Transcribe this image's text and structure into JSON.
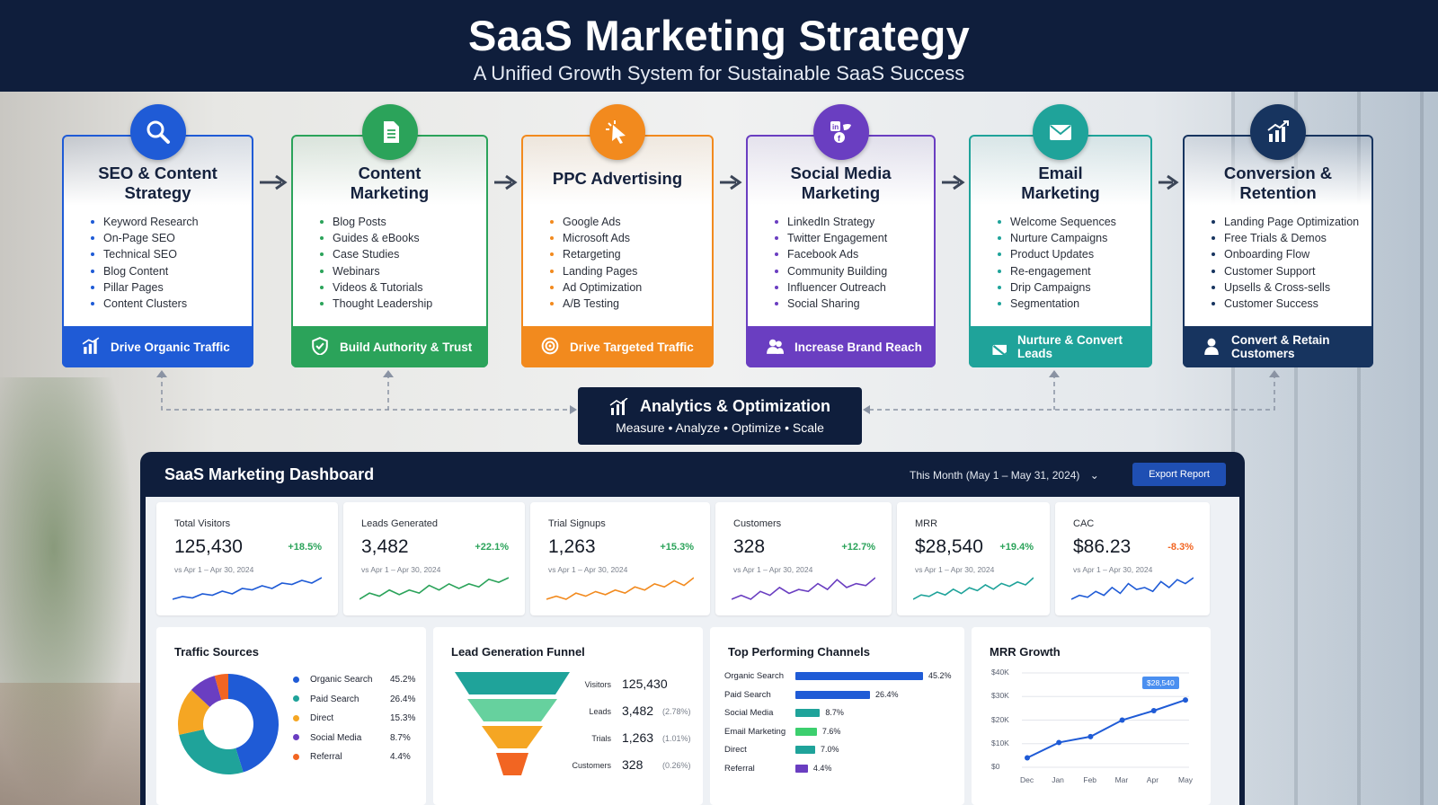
{
  "header": {
    "title": "SaaS Marketing Strategy",
    "subtitle": "A Unified Growth System for Sustainable SaaS Success"
  },
  "stages": [
    {
      "title": "SEO & Content Strategy",
      "title_lines": [
        "SEO & Content",
        "Strategy"
      ],
      "color": "#1f5bd6",
      "icon": "magnifier-icon",
      "items": [
        "Keyword Research",
        "On-Page SEO",
        "Technical SEO",
        "Blog Content",
        "Pillar Pages",
        "Content Clusters"
      ],
      "footer": "Drive Organic Traffic",
      "footer_icon": "bar-chart-icon"
    },
    {
      "title": "Content Marketing",
      "title_lines": [
        "Content",
        "Marketing"
      ],
      "color": "#2ba35a",
      "icon": "document-icon",
      "items": [
        "Blog Posts",
        "Guides & eBooks",
        "Case Studies",
        "Webinars",
        "Videos & Tutorials",
        "Thought Leadership"
      ],
      "footer": "Build Authority & Trust",
      "footer_icon": "shield-check-icon"
    },
    {
      "title": "PPC Advertising",
      "title_lines": [
        "PPC Advertising"
      ],
      "color": "#f28a1e",
      "icon": "cursor-click-icon",
      "items": [
        "Google Ads",
        "Microsoft Ads",
        "Retargeting",
        "Landing Pages",
        "Ad Optimization",
        "A/B Testing"
      ],
      "footer": "Drive Targeted Traffic",
      "footer_icon": "target-icon"
    },
    {
      "title": "Social Media Marketing",
      "title_lines": [
        "Social Media",
        "Marketing"
      ],
      "color": "#6a3ec1",
      "icon": "social-networks-icon",
      "items": [
        "LinkedIn Strategy",
        "Twitter Engagement",
        "Facebook Ads",
        "Community Building",
        "Influencer Outreach",
        "Social Sharing"
      ],
      "footer": "Increase Brand Reach",
      "footer_icon": "users-icon"
    },
    {
      "title": "Email Marketing",
      "title_lines": [
        "Email",
        "Marketing"
      ],
      "color": "#1fa39a",
      "icon": "envelope-icon",
      "items": [
        "Welcome Sequences",
        "Nurture Campaigns",
        "Product Updates",
        "Re-engagement",
        "Drip Campaigns",
        "Segmentation"
      ],
      "footer": "Nurture & Convert Leads",
      "footer_icon": "envelope-icon"
    },
    {
      "title": "Conversion & Retention",
      "title_lines": [
        "Conversion &",
        "Retention"
      ],
      "color": "#17345f",
      "icon": "growth-chart-icon",
      "items": [
        "Landing Page Optimization",
        "Free Trials & Demos",
        "Onboarding Flow",
        "Customer Support",
        "Upsells & Cross-sells",
        "Customer Success"
      ],
      "footer": "Convert & Retain Customers",
      "footer_icon": "user-icon"
    }
  ],
  "analytics": {
    "title": "Analytics & Optimization",
    "subtitle": "Measure  •  Analyze  •  Optimize  •  Scale"
  },
  "dashboard": {
    "title": "SaaS Marketing Dashboard",
    "date_range": "This Month (May 1 – May 31, 2024)",
    "export_label": "Export Report",
    "kpis": [
      {
        "label": "Total Visitors",
        "value": "125,430",
        "change": "+18.5%",
        "compare": "vs Apr 1 – Apr 30, 2024",
        "color": "#1f5bd6",
        "trend": [
          3,
          4,
          3.5,
          5,
          4.5,
          6,
          5,
          7,
          6.5,
          8,
          7,
          9,
          8.5,
          10,
          9,
          11
        ]
      },
      {
        "label": "Leads Generated",
        "value": "3,482",
        "change": "+22.1%",
        "compare": "vs Apr 1 – Apr 30, 2024",
        "color": "#2ba35a",
        "trend": [
          3,
          5,
          4,
          6,
          4.5,
          6,
          5,
          7.5,
          6,
          8,
          6.5,
          8,
          7,
          9.5,
          8.5,
          10
        ]
      },
      {
        "label": "Trial Signups",
        "value": "1,263",
        "change": "+15.3%",
        "compare": "vs Apr 1 – Apr 30, 2024",
        "color": "#f28a1e",
        "trend": [
          3,
          4,
          3,
          5,
          4,
          5.5,
          4.5,
          6,
          5,
          7,
          6,
          8,
          7,
          9,
          7.5,
          10
        ]
      },
      {
        "label": "Customers",
        "value": "328",
        "change": "+12.7%",
        "compare": "vs Apr 1 – Apr 30, 2024",
        "color": "#6a3ec1",
        "trend": [
          4,
          5,
          4,
          6,
          5,
          7,
          5.5,
          6.5,
          6,
          8,
          6.5,
          9,
          7,
          8,
          7.5,
          9.5
        ]
      },
      {
        "label": "MRR",
        "value": "$28,540",
        "change": "+19.4%",
        "compare": "vs Apr 1 – Apr 30, 2024",
        "color": "#1fa39a",
        "trend": [
          3,
          4.5,
          4,
          5.5,
          4.5,
          6.5,
          5,
          7,
          6,
          8,
          6.5,
          8.5,
          7.5,
          9,
          8,
          10.5
        ]
      },
      {
        "label": "CAC",
        "value": "$86.23",
        "change": "-8.3%",
        "compare": "vs Apr 1 – Apr 30, 2024",
        "color": "#1f5bd6",
        "trend": [
          4,
          5,
          4.5,
          6,
          5,
          7,
          5.5,
          8,
          6.5,
          7,
          6,
          8.5,
          7,
          9,
          8,
          9.5
        ]
      }
    ],
    "traffic_sources": {
      "title": "Traffic Sources",
      "items": [
        {
          "name": "Organic Search",
          "percent": "45.2%",
          "value": 45.2,
          "color": "#1f5bd6"
        },
        {
          "name": "Paid Search",
          "percent": "26.4%",
          "value": 26.4,
          "color": "#1fa39a"
        },
        {
          "name": "Direct",
          "percent": "15.3%",
          "value": 15.3,
          "color": "#f5a623"
        },
        {
          "name": "Social Media",
          "percent": "8.7%",
          "value": 8.7,
          "color": "#6a3ec1"
        },
        {
          "name": "Referral",
          "percent": "4.4%",
          "value": 4.4,
          "color": "#f26522"
        }
      ]
    },
    "funnel": {
      "title": "Lead Generation Funnel",
      "stages": [
        {
          "name": "Visitors",
          "value": "125,430",
          "rate": "",
          "color": "#1fa39a"
        },
        {
          "name": "Leads",
          "value": "3,482",
          "rate": "(2.78%)",
          "color": "#66d19e"
        },
        {
          "name": "Trials",
          "value": "1,263",
          "rate": "(1.01%)",
          "color": "#f5a623"
        },
        {
          "name": "Customers",
          "value": "328",
          "rate": "(0.26%)",
          "color": "#f26522"
        }
      ]
    },
    "channels": {
      "title": "Top Performing Channels",
      "items": [
        {
          "name": "Organic Search",
          "percent": "45.2%",
          "value": 45.2,
          "color": "#1f5bd6"
        },
        {
          "name": "Paid Search",
          "percent": "26.4%",
          "value": 26.4,
          "color": "#1f5bd6"
        },
        {
          "name": "Social Media",
          "percent": "8.7%",
          "value": 8.7,
          "color": "#1fa39a"
        },
        {
          "name": "Email Marketing",
          "percent": "7.6%",
          "value": 7.6,
          "color": "#3ccf6e"
        },
        {
          "name": "Direct",
          "percent": "7.0%",
          "value": 7.0,
          "color": "#1fa39a"
        },
        {
          "name": "Referral",
          "percent": "4.4%",
          "value": 4.4,
          "color": "#6a3ec1"
        }
      ]
    },
    "mrr": {
      "title": "MRR Growth",
      "callout": "$28,540",
      "y_ticks": [
        "$40K",
        "$30K",
        "$20K",
        "$10K",
        "$0"
      ],
      "x_ticks": [
        "Dec",
        "Jan",
        "Feb",
        "Mar",
        "Apr",
        "May"
      ]
    }
  },
  "chart_data": {
    "type": "line",
    "title": "MRR Growth",
    "x": [
      "Dec",
      "Jan",
      "Feb",
      "Mar",
      "Apr",
      "May"
    ],
    "series": [
      {
        "values": [
          4000,
          10500,
          13000,
          20000,
          24000,
          28540
        ]
      }
    ],
    "ylim": [
      0,
      40000
    ],
    "ylabel": "",
    "xlabel": "",
    "grid": true
  }
}
